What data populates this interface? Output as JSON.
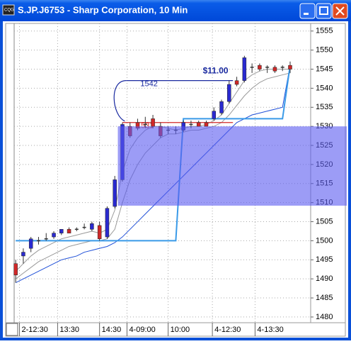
{
  "chart_data": {
    "type": "candlestick",
    "title": "S.JP.J6753 - Sharp Corporation, 10 Min",
    "x": [
      0,
      1,
      2,
      3,
      4,
      5,
      6,
      7,
      8,
      9,
      10,
      11,
      12,
      13,
      14,
      15,
      16,
      17,
      18,
      19,
      20,
      21,
      22,
      23,
      24,
      25,
      26,
      27,
      28,
      29,
      30,
      31,
      32,
      33,
      34,
      35,
      36
    ],
    "open": [
      1494,
      1496,
      1498,
      1500,
      1500.5,
      1501,
      1502,
      1503,
      1503,
      1503.5,
      1503,
      1504,
      1501,
      1509,
      1516,
      1530,
      1531,
      1530.5,
      1532,
      1530,
      1529,
      1529,
      1529,
      1530.5,
      1531,
      1531,
      1532,
      1533.5,
      1536.5,
      1542,
      1542,
      1545.5,
      1546,
      1545.5,
      1545.5,
      1545.5,
      1546
    ],
    "high": [
      1495,
      1498,
      1501,
      1501,
      1502,
      1502.5,
      1503,
      1503.5,
      1503.5,
      1504.5,
      1505,
      1505,
      1509,
      1517,
      1531,
      1531,
      1532,
      1532.5,
      1533,
      1531,
      1530,
      1530,
      1531.5,
      1531.5,
      1531.5,
      1531.5,
      1535,
      1537,
      1542,
      1543,
      1548.5,
      1546.5,
      1546.5,
      1546,
      1546,
      1546,
      1547
    ],
    "low": [
      1489,
      1494,
      1497,
      1499,
      1500,
      1500.5,
      1501.5,
      1502,
      1502.5,
      1503,
      1502.5,
      1500,
      1500.5,
      1508.5,
      1515.5,
      1527,
      1529,
      1529.5,
      1529.5,
      1527,
      1528,
      1528,
      1528.5,
      1529.5,
      1530,
      1530,
      1531.5,
      1533,
      1536,
      1540.5,
      1541.5,
      1544,
      1544.5,
      1544,
      1544,
      1544.5,
      1544
    ],
    "close": [
      1491,
      1497,
      1500.5,
      1500,
      1500.5,
      1502,
      1503,
      1502,
      1503,
      1503.5,
      1504.5,
      1500.5,
      1508.5,
      1516,
      1530.5,
      1527.5,
      1529.5,
      1530.5,
      1530,
      1527.5,
      1529,
      1529,
      1531,
      1530.5,
      1530,
      1530,
      1534,
      1536.5,
      1541,
      1541,
      1548,
      1545.5,
      1545,
      1545.5,
      1544.5,
      1545.5,
      1545
    ],
    "up_color": "#2a2ad0",
    "down_color": "#d02828",
    "lines": [
      {
        "color": "#9a9a9a",
        "values": [
          1492,
          1494,
          1496,
          1497.5,
          1498.5,
          1499.5,
          1500.5,
          1501,
          1501.5,
          1502,
          1502.5,
          1502,
          1503,
          1508,
          1518,
          1524,
          1527,
          1529,
          1530,
          1530,
          1529.5,
          1529,
          1529.5,
          1530,
          1530,
          1530.5,
          1531.5,
          1533,
          1536,
          1539,
          1542,
          1543.5,
          1544.5,
          1545,
          1545,
          1545,
          1545
        ]
      },
      {
        "color": "#9a9a9a",
        "values": [
          1490,
          1491.5,
          1493,
          1494.5,
          1495.5,
          1496.5,
          1497.5,
          1498.5,
          1499,
          1499.5,
          1500,
          1500,
          1500.5,
          1503,
          1510,
          1516,
          1520,
          1523,
          1525,
          1527,
          1528,
          1528,
          1528.5,
          1529,
          1529,
          1529.5,
          1530,
          1531,
          1533,
          1535.5,
          1538,
          1540,
          1541.5,
          1542.5,
          1543,
          1543.5,
          1544
        ]
      },
      {
        "color": "#2050d8",
        "values": [
          1489,
          1490,
          1491,
          1492,
          1493,
          1494,
          1495,
          1495.5,
          1496,
          1497,
          1497.5,
          1498,
          1498.5,
          1499.5,
          1501,
          1503,
          1505,
          1507,
          1509,
          1511,
          1513,
          1515,
          1517,
          1519,
          1521,
          1523,
          1525,
          1527,
          1529,
          1531,
          1532,
          1533,
          1533.5,
          1534,
          1534.5,
          1535,
          1546
        ]
      },
      {
        "color": "#3a9ae8",
        "values": [
          1500,
          1500,
          1500,
          1500,
          1500,
          1500,
          1500,
          1500,
          1500,
          1500,
          1500,
          1500,
          1500,
          1500,
          1500,
          1500,
          1500,
          1500,
          1500,
          1500,
          1500,
          1500,
          1532,
          1532,
          1532,
          1532,
          1532,
          1532,
          1532,
          1532,
          1532,
          1532,
          1532,
          1532,
          1532,
          1532,
          1546
        ]
      }
    ],
    "levels": [
      {
        "value": 1542,
        "color": "#1a2aa0",
        "xrange": [
          14.5,
          28.5
        ]
      },
      {
        "value": 1531,
        "color": "#d02828",
        "xrange": [
          14,
          28.5
        ]
      }
    ],
    "annotation": "$11.00",
    "zone": {
      "x_start": 13.4,
      "low": 1509.2,
      "high": 1530,
      "color": "#5a5af0"
    },
    "xlim": [
      -0.2,
      38.6
    ],
    "ylim": [
      1478.5,
      1557
    ],
    "xticks": [
      {
        "value": 0.5,
        "label": "2-12:30"
      },
      {
        "value": 5.5,
        "label": "13:30"
      },
      {
        "value": 11,
        "label": "14:30"
      },
      {
        "value": 14.6,
        "label": "4-09:00"
      },
      {
        "value": 20,
        "label": "10:00"
      },
      {
        "value": 25.8,
        "label": "4-12:30"
      },
      {
        "value": 31.4,
        "label": "4-13:30"
      }
    ],
    "yticks": [
      1480,
      1485,
      1490,
      1495,
      1500,
      1505,
      1510,
      1515,
      1520,
      1525,
      1530,
      1535,
      1540,
      1545,
      1550,
      1555
    ],
    "grid": true
  }
}
